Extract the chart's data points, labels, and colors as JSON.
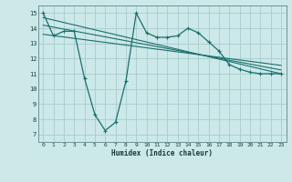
{
  "bg_color": "#cce8e8",
  "grid_color": "#a8cccc",
  "line_color": "#1a6e6e",
  "xlabel": "Humidex (Indice chaleur)",
  "ylabel_ticks": [
    7,
    8,
    9,
    10,
    11,
    12,
    13,
    14,
    15
  ],
  "xlim": [
    -0.5,
    23.5
  ],
  "ylim": [
    6.5,
    15.5
  ],
  "x_ticks": [
    0,
    1,
    2,
    3,
    4,
    5,
    6,
    7,
    8,
    9,
    10,
    11,
    12,
    13,
    14,
    15,
    16,
    17,
    18,
    19,
    20,
    21,
    22,
    23
  ],
  "main_line_x": [
    0,
    1,
    2,
    3,
    4,
    5,
    6,
    7,
    8,
    9,
    10,
    11,
    12,
    13,
    14,
    15,
    16,
    17,
    18,
    19,
    20,
    21,
    22,
    23
  ],
  "main_line_y": [
    15.0,
    13.5,
    13.8,
    13.8,
    10.7,
    8.3,
    7.25,
    7.8,
    10.5,
    15.0,
    13.7,
    13.4,
    13.4,
    13.5,
    14.0,
    13.7,
    13.1,
    12.5,
    11.6,
    11.3,
    11.1,
    11.0,
    11.0,
    11.0
  ],
  "trend1_x": [
    0,
    23
  ],
  "trend1_y": [
    14.7,
    11.0
  ],
  "trend2_x": [
    0,
    23
  ],
  "trend2_y": [
    14.2,
    11.25
  ],
  "trend3_x": [
    0,
    23
  ],
  "trend3_y": [
    13.6,
    11.55
  ]
}
